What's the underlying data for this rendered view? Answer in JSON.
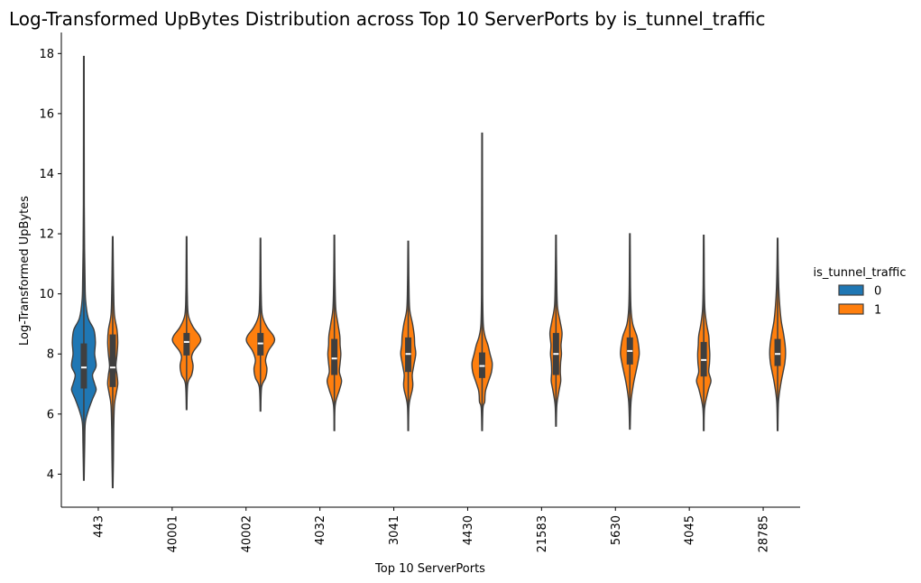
{
  "chart_data": {
    "type": "violin",
    "title": "Log-Transformed UpBytes Distribution across Top 10 ServerPorts by is_tunnel_traffic",
    "xlabel": "Top 10 ServerPorts",
    "ylabel": "Log-Transformed UpBytes",
    "ylim": [
      2.9,
      18.7
    ],
    "yticks": [
      4,
      6,
      8,
      10,
      12,
      14,
      16,
      18
    ],
    "categories": [
      "443",
      "40001",
      "40002",
      "4032",
      "3041",
      "4430",
      "21583",
      "5630",
      "4045",
      "28785"
    ],
    "legend": {
      "title": "is_tunnel_traffic",
      "placement": "right",
      "entries": [
        {
          "label": "0",
          "color": "#1f77b4"
        },
        {
          "label": "1",
          "color": "#ff7f0e"
        }
      ]
    },
    "series": [
      {
        "hue": "0",
        "color": "#1f77b4",
        "violins": [
          {
            "category": "443",
            "min": 3.8,
            "max": 17.9,
            "q1": 6.85,
            "median": 7.55,
            "q3": 8.35,
            "profile": [
              [
                3.8,
                0.02
              ],
              [
                5.0,
                0.06
              ],
              [
                5.7,
                0.1
              ],
              [
                6.1,
                0.3
              ],
              [
                6.5,
                0.6
              ],
              [
                6.8,
                0.85
              ],
              [
                7.0,
                0.75
              ],
              [
                7.3,
                0.6
              ],
              [
                7.6,
                0.85
              ],
              [
                8.0,
                0.75
              ],
              [
                8.4,
                0.8
              ],
              [
                8.8,
                0.7
              ],
              [
                9.2,
                0.3
              ],
              [
                9.8,
                0.12
              ],
              [
                10.5,
                0.08
              ],
              [
                11.5,
                0.05
              ],
              [
                13,
                0.03
              ],
              [
                15,
                0.025
              ],
              [
                17.9,
                0.02
              ]
            ]
          }
        ]
      },
      {
        "hue": "1",
        "color": "#ff7f0e",
        "violins": [
          {
            "category": "443",
            "min": 3.55,
            "max": 11.9,
            "q1": 6.9,
            "median": 7.55,
            "q3": 8.65,
            "profile": [
              [
                3.55,
                0.02
              ],
              [
                4.5,
                0.05
              ],
              [
                5.5,
                0.07
              ],
              [
                6.3,
                0.12
              ],
              [
                6.7,
                0.25
              ],
              [
                7.0,
                0.35
              ],
              [
                7.3,
                0.3
              ],
              [
                7.6,
                0.22
              ],
              [
                8.0,
                0.3
              ],
              [
                8.4,
                0.35
              ],
              [
                8.8,
                0.3
              ],
              [
                9.3,
                0.12
              ],
              [
                10,
                0.07
              ],
              [
                11,
                0.04
              ],
              [
                11.9,
                0.02
              ]
            ]
          },
          {
            "category": "40001",
            "min": 6.15,
            "max": 11.9,
            "q1": 7.95,
            "median": 8.4,
            "q3": 8.7,
            "profile": [
              [
                6.15,
                0.02
              ],
              [
                7.0,
                0.08
              ],
              [
                7.3,
                0.35
              ],
              [
                7.6,
                0.45
              ],
              [
                7.9,
                0.35
              ],
              [
                8.1,
                0.5
              ],
              [
                8.4,
                0.95
              ],
              [
                8.6,
                0.9
              ],
              [
                8.9,
                0.45
              ],
              [
                9.3,
                0.12
              ],
              [
                10,
                0.05
              ],
              [
                11,
                0.03
              ],
              [
                11.9,
                0.02
              ]
            ]
          },
          {
            "category": "40002",
            "min": 6.1,
            "max": 11.85,
            "q1": 7.95,
            "median": 8.35,
            "q3": 8.7,
            "profile": [
              [
                6.1,
                0.02
              ],
              [
                6.9,
                0.08
              ],
              [
                7.2,
                0.35
              ],
              [
                7.5,
                0.45
              ],
              [
                7.8,
                0.35
              ],
              [
                8.1,
                0.55
              ],
              [
                8.4,
                0.95
              ],
              [
                8.6,
                0.9
              ],
              [
                8.9,
                0.45
              ],
              [
                9.3,
                0.12
              ],
              [
                10,
                0.05
              ],
              [
                11,
                0.03
              ],
              [
                11.85,
                0.02
              ]
            ]
          },
          {
            "category": "4032",
            "min": 5.45,
            "max": 11.95,
            "q1": 7.3,
            "median": 7.85,
            "q3": 8.5,
            "profile": [
              [
                5.45,
                0.02
              ],
              [
                6.3,
                0.06
              ],
              [
                6.8,
                0.35
              ],
              [
                7.1,
                0.5
              ],
              [
                7.4,
                0.35
              ],
              [
                7.7,
                0.4
              ],
              [
                8.0,
                0.45
              ],
              [
                8.3,
                0.4
              ],
              [
                8.6,
                0.38
              ],
              [
                9.0,
                0.25
              ],
              [
                9.5,
                0.1
              ],
              [
                10.3,
                0.05
              ],
              [
                11.2,
                0.03
              ],
              [
                11.95,
                0.02
              ]
            ]
          },
          {
            "category": "3041",
            "min": 5.45,
            "max": 11.75,
            "q1": 7.4,
            "median": 8.0,
            "q3": 8.55,
            "profile": [
              [
                5.45,
                0.02
              ],
              [
                6.3,
                0.06
              ],
              [
                6.8,
                0.28
              ],
              [
                7.0,
                0.32
              ],
              [
                7.3,
                0.28
              ],
              [
                7.6,
                0.38
              ],
              [
                8.0,
                0.52
              ],
              [
                8.3,
                0.45
              ],
              [
                8.6,
                0.42
              ],
              [
                9.0,
                0.3
              ],
              [
                9.5,
                0.1
              ],
              [
                10.3,
                0.05
              ],
              [
                11.2,
                0.03
              ],
              [
                11.75,
                0.02
              ]
            ]
          },
          {
            "category": "4430",
            "min": 5.45,
            "max": 15.35,
            "q1": 7.2,
            "median": 7.6,
            "q3": 8.05,
            "profile": [
              [
                5.45,
                0.02
              ],
              [
                6.2,
                0.06
              ],
              [
                6.4,
                0.18
              ],
              [
                6.6,
                0.2
              ],
              [
                6.8,
                0.25
              ],
              [
                7.1,
                0.45
              ],
              [
                7.4,
                0.65
              ],
              [
                7.7,
                0.7
              ],
              [
                8.0,
                0.55
              ],
              [
                8.3,
                0.4
              ],
              [
                8.6,
                0.2
              ],
              [
                9.0,
                0.08
              ],
              [
                10,
                0.04
              ],
              [
                12,
                0.03
              ],
              [
                15.35,
                0.02
              ]
            ]
          },
          {
            "category": "21583",
            "min": 5.6,
            "max": 11.95,
            "q1": 7.3,
            "median": 8.0,
            "q3": 8.7,
            "profile": [
              [
                5.6,
                0.02
              ],
              [
                6.3,
                0.06
              ],
              [
                6.8,
                0.22
              ],
              [
                7.1,
                0.33
              ],
              [
                7.4,
                0.3
              ],
              [
                7.7,
                0.32
              ],
              [
                8.0,
                0.38
              ],
              [
                8.3,
                0.35
              ],
              [
                8.7,
                0.42
              ],
              [
                9.1,
                0.28
              ],
              [
                9.6,
                0.1
              ],
              [
                10.5,
                0.05
              ],
              [
                11.3,
                0.03
              ],
              [
                11.95,
                0.02
              ]
            ]
          },
          {
            "category": "5630",
            "min": 5.5,
            "max": 12.0,
            "q1": 7.65,
            "median": 8.1,
            "q3": 8.55,
            "profile": [
              [
                5.5,
                0.02
              ],
              [
                6.4,
                0.08
              ],
              [
                7.0,
                0.25
              ],
              [
                7.4,
                0.42
              ],
              [
                7.7,
                0.55
              ],
              [
                8.0,
                0.65
              ],
              [
                8.3,
                0.6
              ],
              [
                8.6,
                0.48
              ],
              [
                9.0,
                0.2
              ],
              [
                9.5,
                0.08
              ],
              [
                10.3,
                0.04
              ],
              [
                11.2,
                0.03
              ],
              [
                12.0,
                0.02
              ]
            ]
          },
          {
            "category": "4045",
            "min": 5.45,
            "max": 11.95,
            "q1": 7.25,
            "median": 7.8,
            "q3": 8.4,
            "profile": [
              [
                5.45,
                0.02
              ],
              [
                6.2,
                0.06
              ],
              [
                6.8,
                0.32
              ],
              [
                7.1,
                0.5
              ],
              [
                7.4,
                0.35
              ],
              [
                7.7,
                0.4
              ],
              [
                8.0,
                0.42
              ],
              [
                8.3,
                0.38
              ],
              [
                8.6,
                0.35
              ],
              [
                9.0,
                0.2
              ],
              [
                9.5,
                0.08
              ],
              [
                10.3,
                0.04
              ],
              [
                11.2,
                0.03
              ],
              [
                11.95,
                0.02
              ]
            ]
          },
          {
            "category": "28785",
            "min": 5.45,
            "max": 11.85,
            "q1": 7.6,
            "median": 8.0,
            "q3": 8.5,
            "profile": [
              [
                5.45,
                0.02
              ],
              [
                6.4,
                0.06
              ],
              [
                7.0,
                0.22
              ],
              [
                7.4,
                0.38
              ],
              [
                7.7,
                0.5
              ],
              [
                8.0,
                0.55
              ],
              [
                8.3,
                0.52
              ],
              [
                8.7,
                0.4
              ],
              [
                9.1,
                0.25
              ],
              [
                9.6,
                0.15
              ],
              [
                10.2,
                0.08
              ],
              [
                11,
                0.04
              ],
              [
                11.85,
                0.02
              ]
            ]
          }
        ]
      }
    ]
  }
}
